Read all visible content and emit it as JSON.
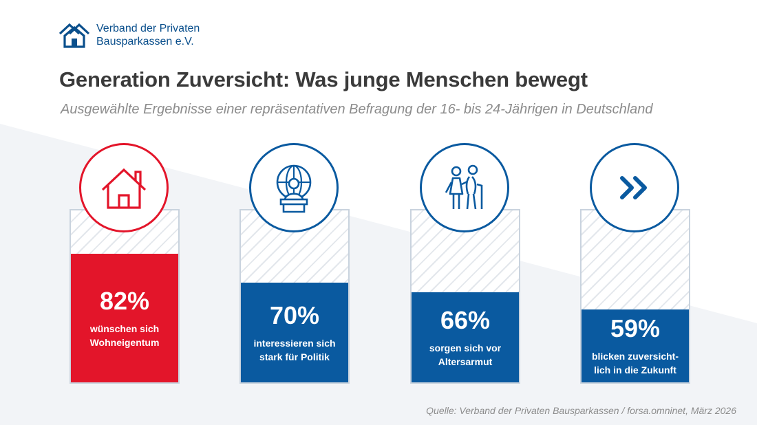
{
  "header": {
    "org_line1": "Verband der Privaten",
    "org_line2": "Bausparkassen e.V.",
    "title": "Generation Zuversicht: Was junge Menschen bewegt",
    "subtitle": "Ausgewählte Ergebnisse einer repräsentativen Befragung der 16- bis 24-Jährigen in Deutschland"
  },
  "footer": {
    "source": "Quelle: Verband der Privaten Bausparkassen / forsa.omninet, März 2026"
  },
  "colors": {
    "red": "#e3152a",
    "blue": "#0a5aa0",
    "logo_blue": "#0a4f8c",
    "track_border": "#c9d3de",
    "title_gray": "#3a3a3a",
    "subtitle_gray": "#8c8c8c"
  },
  "chart_data": {
    "type": "bar",
    "unit": "%",
    "ylim": [
      0,
      100
    ],
    "categories": [
      "wünschen sich Wohneigentum",
      "interessieren sich stark für Politik",
      "sorgen sich vor Altersarmut",
      "blicken zuversichtlich in die Zukunft"
    ],
    "values": [
      82,
      70,
      66,
      59
    ],
    "items": [
      {
        "value": 82,
        "display": "82%",
        "label": "wünschen sich Wohneigentum",
        "color": "red",
        "icon": "house-icon"
      },
      {
        "value": 70,
        "display": "70%",
        "label": "interessieren sich stark für Politik",
        "color": "blue",
        "icon": "globe-podium-icon"
      },
      {
        "value": 66,
        "display": "66%",
        "label": "sorgen sich vor Altersarmut",
        "color": "blue",
        "icon": "elderly-couple-icon"
      },
      {
        "value": 59,
        "display": "59%",
        "label": "blicken zuversicht-lich in die Zukunft",
        "color": "blue",
        "icon": "double-chevron-right-icon"
      }
    ]
  }
}
